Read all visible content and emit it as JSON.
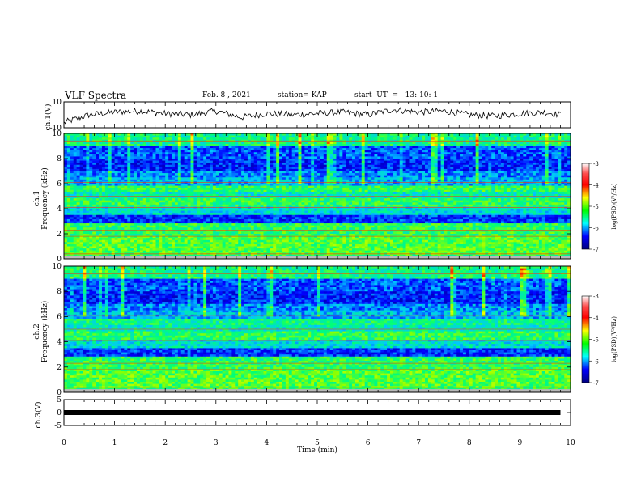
{
  "header": {
    "title": "VLF Spectra",
    "date": "Feb. 8 , 2021",
    "station": "station= KAP",
    "start": "start  UT  =   13: 10: 1"
  },
  "colors": {
    "trace": "#000000",
    "colormap": [
      "#ffffff",
      "#8b0000",
      "#ff0000",
      "#ffff00",
      "#00ff00",
      "#00ffff",
      "#0000ff",
      "#00007f"
    ]
  },
  "chart_data": [
    {
      "type": "line",
      "panel": "ch1-waveform",
      "ylabel": "ch.1(V)",
      "ylim": [
        -10,
        10
      ],
      "yticks": [
        "10",
        "-10"
      ],
      "x": [
        0,
        0.5,
        1,
        1.5,
        2,
        2.5,
        3,
        3.5,
        4,
        4.5,
        5,
        5.5,
        6,
        6.5,
        7,
        7.5,
        8,
        8.5,
        9,
        9.5,
        9.8
      ],
      "y": [
        -6,
        0,
        2,
        3,
        1,
        0,
        3,
        -2,
        1,
        0,
        1,
        2,
        0,
        4,
        2,
        3,
        0,
        -1,
        1,
        2,
        0
      ]
    },
    {
      "type": "heatmap",
      "panel": "ch1-spectrogram",
      "ylabel": "ch.1\nFrequency (kHz)",
      "ylim": [
        0,
        10
      ],
      "yticks": [
        "0",
        "2",
        "4",
        "6",
        "8",
        "10"
      ],
      "colorbar": {
        "label": "log(PSD)(V²/Hz)",
        "ticks": [
          "-3",
          "-4",
          "-5",
          "-6",
          "-7"
        ],
        "range": [
          -7,
          -3
        ]
      }
    },
    {
      "type": "heatmap",
      "panel": "ch2-spectrogram",
      "ylabel": "ch.2\nFrequency (kHz)",
      "ylim": [
        0,
        10
      ],
      "yticks": [
        "0",
        "2",
        "4",
        "6",
        "8",
        "10"
      ],
      "colorbar": {
        "label": "log(PSD)(V²/Hz)",
        "ticks": [
          "-3",
          "-4",
          "-5",
          "-6",
          "-7"
        ],
        "range": [
          -7,
          -3
        ]
      }
    },
    {
      "type": "line",
      "panel": "ch3-waveform",
      "ylabel": "ch.3(V)",
      "ylim": [
        -5,
        5
      ],
      "yticks": [
        "5",
        "0",
        "-5"
      ],
      "x": [
        0,
        9.8
      ],
      "y": [
        0,
        0
      ]
    }
  ],
  "xaxis": {
    "label": "Time  (min)",
    "ticks": [
      "0",
      "1",
      "2",
      "3",
      "4",
      "5",
      "6",
      "7",
      "8",
      "9",
      "10"
    ],
    "range": [
      0,
      10
    ]
  }
}
